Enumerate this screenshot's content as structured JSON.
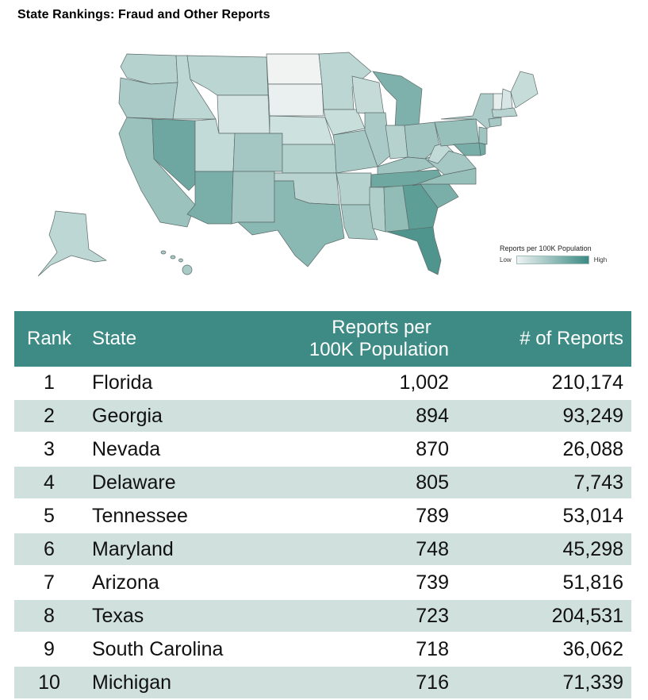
{
  "chart_data": [
    {
      "type": "choropleth-map",
      "title": "State Rankings: Fraud and Other Reports",
      "legend": {
        "title": "Reports per 100K Population",
        "low_label": "Low",
        "high_label": "High",
        "low_color": "#eef3f2",
        "high_color": "#3c8a84",
        "placement": "bottom-right"
      },
      "highlighted_states": [
        "Florida",
        "Georgia",
        "Nevada",
        "Delaware",
        "Tennessee",
        "Maryland",
        "Arizona",
        "Texas",
        "South Carolina",
        "Michigan"
      ]
    },
    {
      "type": "table",
      "columns": [
        "Rank",
        "State",
        "Reports per 100K Population",
        "# of Reports"
      ],
      "header": {
        "rank": "Rank",
        "state": "State",
        "rate_line1": "Reports per",
        "rate_line2": "100K Population",
        "count": "# of Reports"
      },
      "rows": [
        {
          "rank": "1",
          "state": "Florida",
          "rate": "1,002",
          "count": "210,174"
        },
        {
          "rank": "2",
          "state": "Georgia",
          "rate": "894",
          "count": "93,249"
        },
        {
          "rank": "3",
          "state": "Nevada",
          "rate": "870",
          "count": "26,088"
        },
        {
          "rank": "4",
          "state": "Delaware",
          "rate": "805",
          "count": "7,743"
        },
        {
          "rank": "5",
          "state": "Tennessee",
          "rate": "789",
          "count": "53,014"
        },
        {
          "rank": "6",
          "state": "Maryland",
          "rate": "748",
          "count": "45,298"
        },
        {
          "rank": "7",
          "state": "Arizona",
          "rate": "739",
          "count": "51,816"
        },
        {
          "rank": "8",
          "state": "Texas",
          "rate": "723",
          "count": "204,531"
        },
        {
          "rank": "9",
          "state": "South Carolina",
          "rate": "718",
          "count": "36,062"
        },
        {
          "rank": "10",
          "state": "Michigan",
          "rate": "716",
          "count": "71,339"
        }
      ]
    }
  ]
}
